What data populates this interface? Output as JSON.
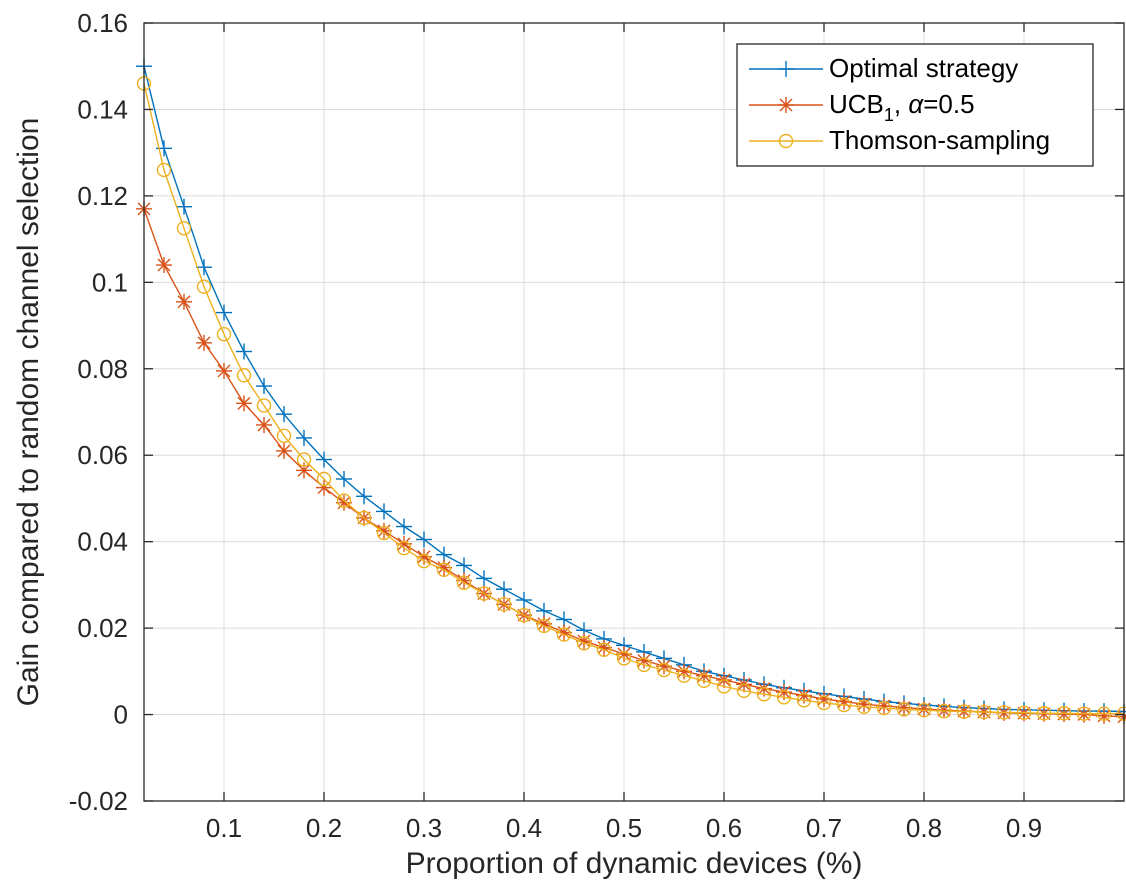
{
  "chart_data": {
    "type": "line",
    "title": "",
    "xlabel": "Proportion of dynamic devices (%)",
    "ylabel": "Gain compared to random channel selection",
    "xlim": [
      0.02,
      1.0
    ],
    "ylim": [
      -0.02,
      0.16
    ],
    "x_ticks": [
      "0.1",
      "0.2",
      "0.3",
      "0.4",
      "0.5",
      "0.6",
      "0.7",
      "0.8",
      "0.9"
    ],
    "y_ticks": [
      "-0.02",
      "0",
      "0.02",
      "0.04",
      "0.06",
      "0.08",
      "0.1",
      "0.12",
      "0.14",
      "0.16"
    ],
    "grid": true,
    "legend_position": "top-right",
    "x": [
      0.02,
      0.04,
      0.06,
      0.08,
      0.1,
      0.12,
      0.14,
      0.16,
      0.18,
      0.2,
      0.22,
      0.24,
      0.26,
      0.28,
      0.3,
      0.32,
      0.34,
      0.36,
      0.38,
      0.4,
      0.42,
      0.44,
      0.46,
      0.48,
      0.5,
      0.52,
      0.54,
      0.56,
      0.58,
      0.6,
      0.62,
      0.64,
      0.66,
      0.68,
      0.7,
      0.72,
      0.74,
      0.76,
      0.78,
      0.8,
      0.82,
      0.84,
      0.86,
      0.88,
      0.9,
      0.92,
      0.94,
      0.96,
      0.98,
      1.0
    ],
    "series": [
      {
        "name": "Optimal strategy",
        "color": "#0072BD",
        "marker": "plus",
        "values": [
          0.15,
          0.131,
          0.1175,
          0.1035,
          0.093,
          0.084,
          0.076,
          0.0695,
          0.064,
          0.059,
          0.0545,
          0.0505,
          0.047,
          0.0435,
          0.0405,
          0.037,
          0.0345,
          0.0315,
          0.029,
          0.0265,
          0.024,
          0.022,
          0.0195,
          0.0175,
          0.016,
          0.0145,
          0.013,
          0.0115,
          0.01,
          0.009,
          0.008,
          0.007,
          0.0062,
          0.0055,
          0.0048,
          0.0042,
          0.0036,
          0.003,
          0.0026,
          0.0022,
          0.0019,
          0.0016,
          0.0014,
          0.0012,
          0.0011,
          0.001,
          0.0009,
          0.0008,
          0.0008,
          0.0007
        ]
      },
      {
        "name": "UCB1, α=0.5",
        "color": "#D95319",
        "marker": "asterisk",
        "values": [
          0.117,
          0.104,
          0.0955,
          0.086,
          0.0795,
          0.072,
          0.067,
          0.061,
          0.0565,
          0.0525,
          0.049,
          0.0455,
          0.0425,
          0.0395,
          0.0365,
          0.034,
          0.031,
          0.028,
          0.0255,
          0.023,
          0.021,
          0.019,
          0.017,
          0.0155,
          0.014,
          0.0125,
          0.0112,
          0.01,
          0.009,
          0.008,
          0.007,
          0.006,
          0.0052,
          0.0044,
          0.0036,
          0.003,
          0.0024,
          0.002,
          0.0016,
          0.0013,
          0.001,
          0.0008,
          0.0006,
          0.0004,
          0.0003,
          0.0002,
          0.0001,
          0.0,
          -0.0003,
          -0.0005
        ]
      },
      {
        "name": "Thomson-sampling",
        "color": "#EDB120",
        "marker": "circle",
        "values": [
          0.146,
          0.126,
          0.1125,
          0.099,
          0.088,
          0.0785,
          0.0715,
          0.0645,
          0.059,
          0.0545,
          0.0495,
          0.0455,
          0.042,
          0.0385,
          0.0355,
          0.0335,
          0.0305,
          0.028,
          0.0255,
          0.023,
          0.0205,
          0.0185,
          0.0165,
          0.015,
          0.013,
          0.0115,
          0.0103,
          0.009,
          0.0078,
          0.0065,
          0.0055,
          0.0047,
          0.004,
          0.0033,
          0.0027,
          0.0022,
          0.0018,
          0.0015,
          0.0012,
          0.001,
          0.0008,
          0.0007,
          0.0006,
          0.0005,
          0.0004,
          0.0003,
          0.0003,
          0.0002,
          0.0002,
          0.0002
        ]
      }
    ],
    "legend_labels": {
      "s0": "Optimal strategy",
      "s1_main": "UCB",
      "s1_sub": "1",
      "s1_rest": ", ",
      "s1_alpha": "α",
      "s1_val": "=0.5",
      "s2": "Thomson-sampling"
    }
  }
}
